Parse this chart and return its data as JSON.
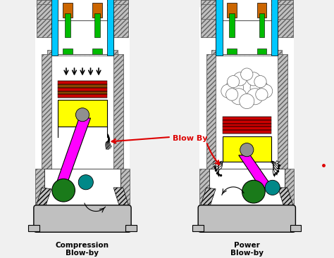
{
  "bg_color": "#f0f0f0",
  "gray_engine": "#8c8c8c",
  "gray_light": "#c0c0c0",
  "gray_dark": "#606060",
  "cyan": "#00c8ff",
  "yellow": "#ffff00",
  "magenta": "#ff00ff",
  "green_dark": "#1a7a1a",
  "teal": "#008888",
  "red": "#dd0000",
  "orange_rod": "#cc6600",
  "green_valve": "#00bb00",
  "red_rings": "#cc0000",
  "brown_rings": "#884400",
  "black": "#000000",
  "white": "#ffffff",
  "label1": "Compression\nBlow-by",
  "label2": "Power\nBlow-by",
  "blowby_label": "Blow By",
  "figsize": [
    4.74,
    3.67
  ],
  "dpi": 100
}
